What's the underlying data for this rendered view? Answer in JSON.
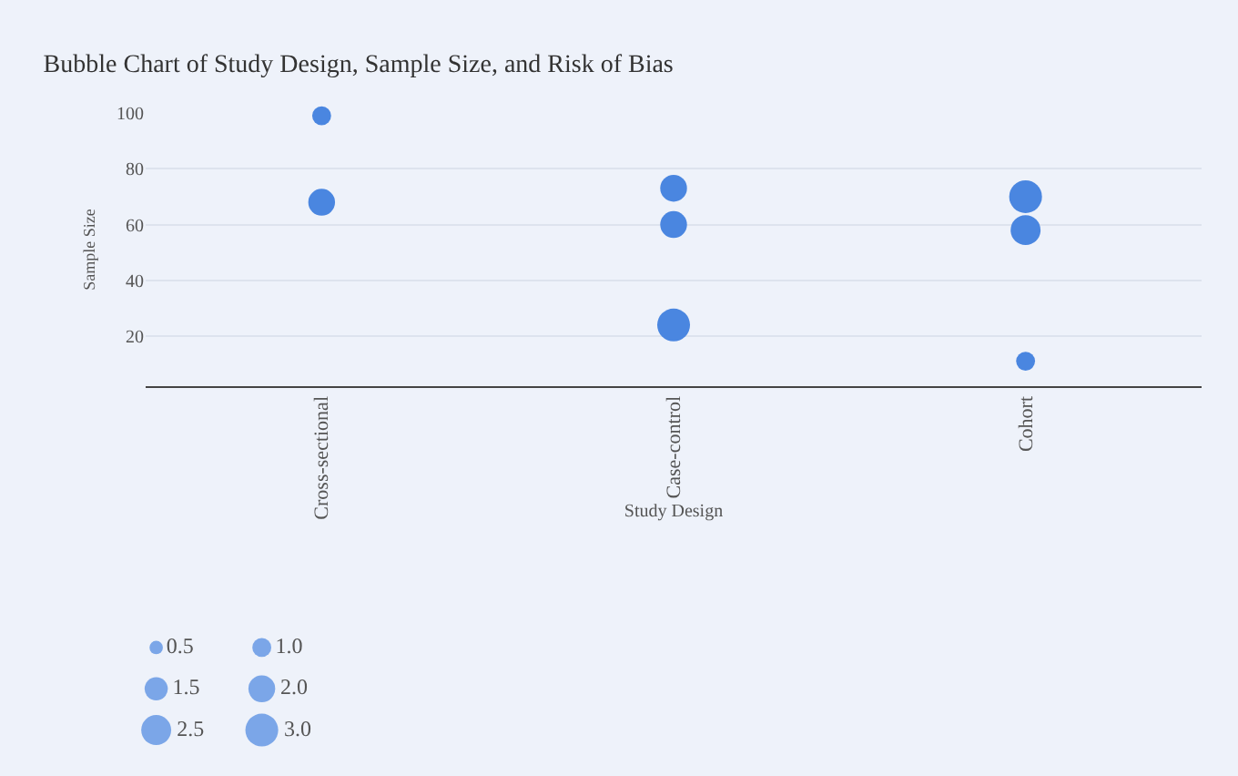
{
  "chart_data": {
    "type": "bubble",
    "title": "Bubble Chart of Study Design, Sample Size, and Risk of Bias",
    "xlabel": "Study Design",
    "ylabel": "Sample Size",
    "categories": [
      "Cross-sectional",
      "Case-control",
      "Cohort"
    ],
    "series": [
      {
        "color": "#4a86e0",
        "x": [
          "Cross-sectional",
          "Cross-sectional",
          "Case-control",
          "Case-control",
          "Case-control",
          "Cohort",
          "Cohort",
          "Cohort"
        ],
        "values": [
          99,
          68,
          73,
          60,
          24,
          70,
          58,
          11
        ],
        "sizes": [
          1.0,
          2.0,
          2.0,
          2.0,
          3.0,
          3.0,
          2.5,
          1.0
        ]
      }
    ],
    "size_legend": [
      0.5,
      {
        "value": 1,
        "label": "1.0"
      },
      1.5,
      {
        "value": 2,
        "label": "2.0"
      },
      2.5,
      {
        "value": 3,
        "label": "3.0"
      }
    ],
    "ylim": [
      2,
      100
    ],
    "yticks": [
      20,
      40,
      60,
      80,
      100
    ],
    "grid": "y"
  }
}
